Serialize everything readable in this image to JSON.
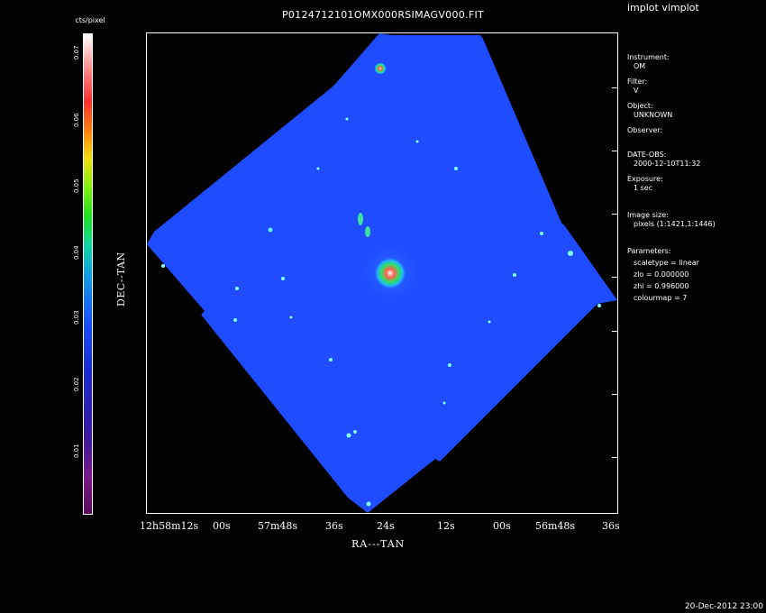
{
  "window": {
    "title": "P0124712101OMX000RSIMAGV000.FIT",
    "program": "implot vimplot"
  },
  "colorbar": {
    "title": "cts/pixel",
    "ticks": [
      "0.07",
      "0.06",
      "0.05",
      "0.04",
      "0.03",
      "0.02",
      "0.01"
    ]
  },
  "axes": {
    "ylabel": "DEC--TAN",
    "xlabel": "RA---TAN",
    "xticks": [
      "12h58m12s",
      "00s",
      "57m48s",
      "36s",
      "24s",
      "12s",
      "00s",
      "56m48s",
      "36s"
    ]
  },
  "info": {
    "instrument_label": "Instrument:",
    "instrument_value": "OM",
    "filter_label": "Filter:",
    "filter_value": "V",
    "object_label": "Object:",
    "object_value": "UNKNOWN",
    "observer_label": "Observer:",
    "dateobs_label": "DATE-OBS:",
    "dateobs_value": "2000-12-10T11:32",
    "exposure_label": "Exposure:",
    "exposure_value": "1 sec",
    "imagesize_label": "Image size:",
    "imagesize_value": "pixels (1:1421,1:1446)",
    "params_label": "Parameters:",
    "scaletype": "scaletype = linear",
    "zlo": "zlo = 0.000000",
    "zhi": "zhi = 0.996000",
    "colourmap": "colourmap =   7"
  },
  "footer": {
    "date": "20-Dec-2012 23:00"
  },
  "colors": {
    "background": "#000000",
    "field": "#1f4cff",
    "star_core": "#ff4030"
  }
}
